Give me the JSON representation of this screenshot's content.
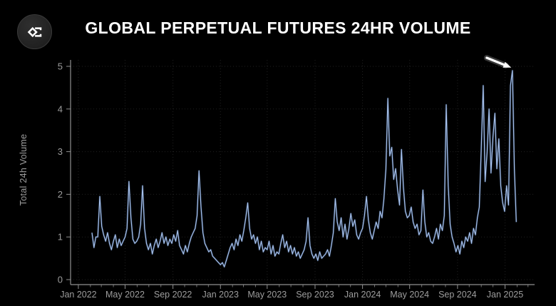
{
  "header": {
    "title": "GLOBAL PERPETUAL FUTURES 24HR VOLUME"
  },
  "colors": {
    "background": "#000000",
    "title_text": "#ffffff",
    "series_line": "#a7c1ec",
    "series_glow": "#5f87bd",
    "axis_line": "#8f8f8f",
    "tick_text": "#9d9d9d",
    "gridline": "#ffffff",
    "annotation_arrow": "#ffffff"
  },
  "chart_data": {
    "type": "line",
    "title": "GLOBAL PERPETUAL FUTURES 24HR VOLUME",
    "xlabel": "",
    "ylabel": "Total 24h Volume",
    "yticks": [
      0,
      1,
      2,
      3,
      4,
      5
    ],
    "ylim": [
      -0.12,
      5.15
    ],
    "xlim": [
      "2021-12-12",
      "2025-03-17"
    ],
    "xticks": [
      "Jan 2022",
      "May 2022",
      "Sep 2022",
      "Jan 2023",
      "May 2023",
      "Sep 2023",
      "Jan 2024",
      "May 2024",
      "Sep 2024",
      "Jan 2025"
    ],
    "grid": "dotted horizontal and vertical at labeled ticks, minor monthly tick marks on x-axis",
    "legend": "none",
    "annotation": {
      "shape": "arrow",
      "color": "#ffffff",
      "description": "white arrow pointing down-right at the record-high spike of ~4.9 in mid-January 2025",
      "tail": {
        "date": "2024-11-15",
        "value": 5.2
      },
      "tip": {
        "date": "2025-01-17",
        "value": 4.97
      }
    },
    "series": [
      {
        "name": "Total 24h Volume",
        "start_date": "2022-02-05",
        "interval_days": 5,
        "values": [
          1.1,
          0.75,
          1.0,
          1.0,
          1.95,
          1.25,
          1.05,
          0.9,
          1.1,
          0.85,
          0.7,
          0.9,
          1.05,
          0.75,
          0.95,
          0.8,
          0.9,
          1.0,
          1.2,
          2.3,
          1.45,
          0.95,
          0.85,
          0.9,
          1.0,
          1.3,
          2.2,
          1.2,
          0.85,
          0.7,
          0.85,
          0.6,
          0.8,
          0.95,
          0.75,
          0.9,
          1.1,
          0.85,
          1.0,
          0.8,
          0.95,
          0.85,
          1.05,
          0.9,
          1.15,
          0.8,
          0.7,
          0.6,
          0.8,
          0.65,
          0.85,
          1.0,
          1.1,
          1.2,
          1.5,
          2.55,
          1.7,
          1.1,
          0.85,
          0.75,
          0.65,
          0.7,
          0.55,
          0.5,
          0.45,
          0.4,
          0.35,
          0.4,
          0.3,
          0.45,
          0.6,
          0.75,
          0.85,
          0.7,
          0.95,
          0.8,
          1.05,
          0.9,
          1.15,
          1.45,
          1.8,
          1.2,
          0.95,
          1.05,
          0.85,
          1.0,
          0.7,
          0.9,
          0.65,
          0.75,
          0.7,
          0.9,
          0.6,
          0.8,
          0.55,
          0.65,
          0.6,
          0.85,
          1.05,
          0.75,
          0.9,
          0.65,
          0.8,
          0.6,
          0.75,
          0.55,
          0.65,
          0.5,
          0.6,
          0.7,
          0.9,
          1.45,
          0.8,
          0.6,
          0.5,
          0.6,
          0.45,
          0.65,
          0.5,
          0.55,
          0.6,
          0.7,
          0.55,
          0.8,
          1.1,
          1.9,
          1.35,
          1.15,
          1.45,
          1.0,
          1.3,
          0.95,
          1.2,
          1.55,
          1.25,
          1.4,
          1.05,
          0.95,
          1.1,
          1.2,
          1.5,
          1.95,
          1.4,
          1.1,
          0.95,
          1.15,
          1.35,
          1.2,
          1.6,
          1.45,
          1.9,
          2.6,
          4.25,
          2.9,
          3.1,
          2.35,
          2.6,
          2.1,
          1.75,
          3.05,
          2.15,
          1.6,
          1.45,
          1.5,
          1.7,
          1.35,
          1.2,
          1.3,
          1.05,
          1.15,
          2.1,
          1.35,
          1.0,
          1.1,
          0.9,
          0.85,
          1.0,
          1.2,
          0.95,
          1.3,
          1.15,
          1.5,
          4.1,
          2.2,
          1.3,
          1.0,
          0.85,
          0.65,
          0.8,
          0.6,
          0.9,
          0.75,
          1.0,
          0.9,
          1.1,
          0.85,
          1.2,
          1.05,
          1.45,
          1.7,
          3.1,
          4.55,
          2.3,
          3.0,
          4.0,
          2.5,
          3.35,
          3.9,
          2.6,
          3.3,
          2.2,
          1.8,
          1.6,
          2.2,
          1.75,
          4.55,
          4.9,
          2.6,
          1.35
        ]
      }
    ]
  }
}
